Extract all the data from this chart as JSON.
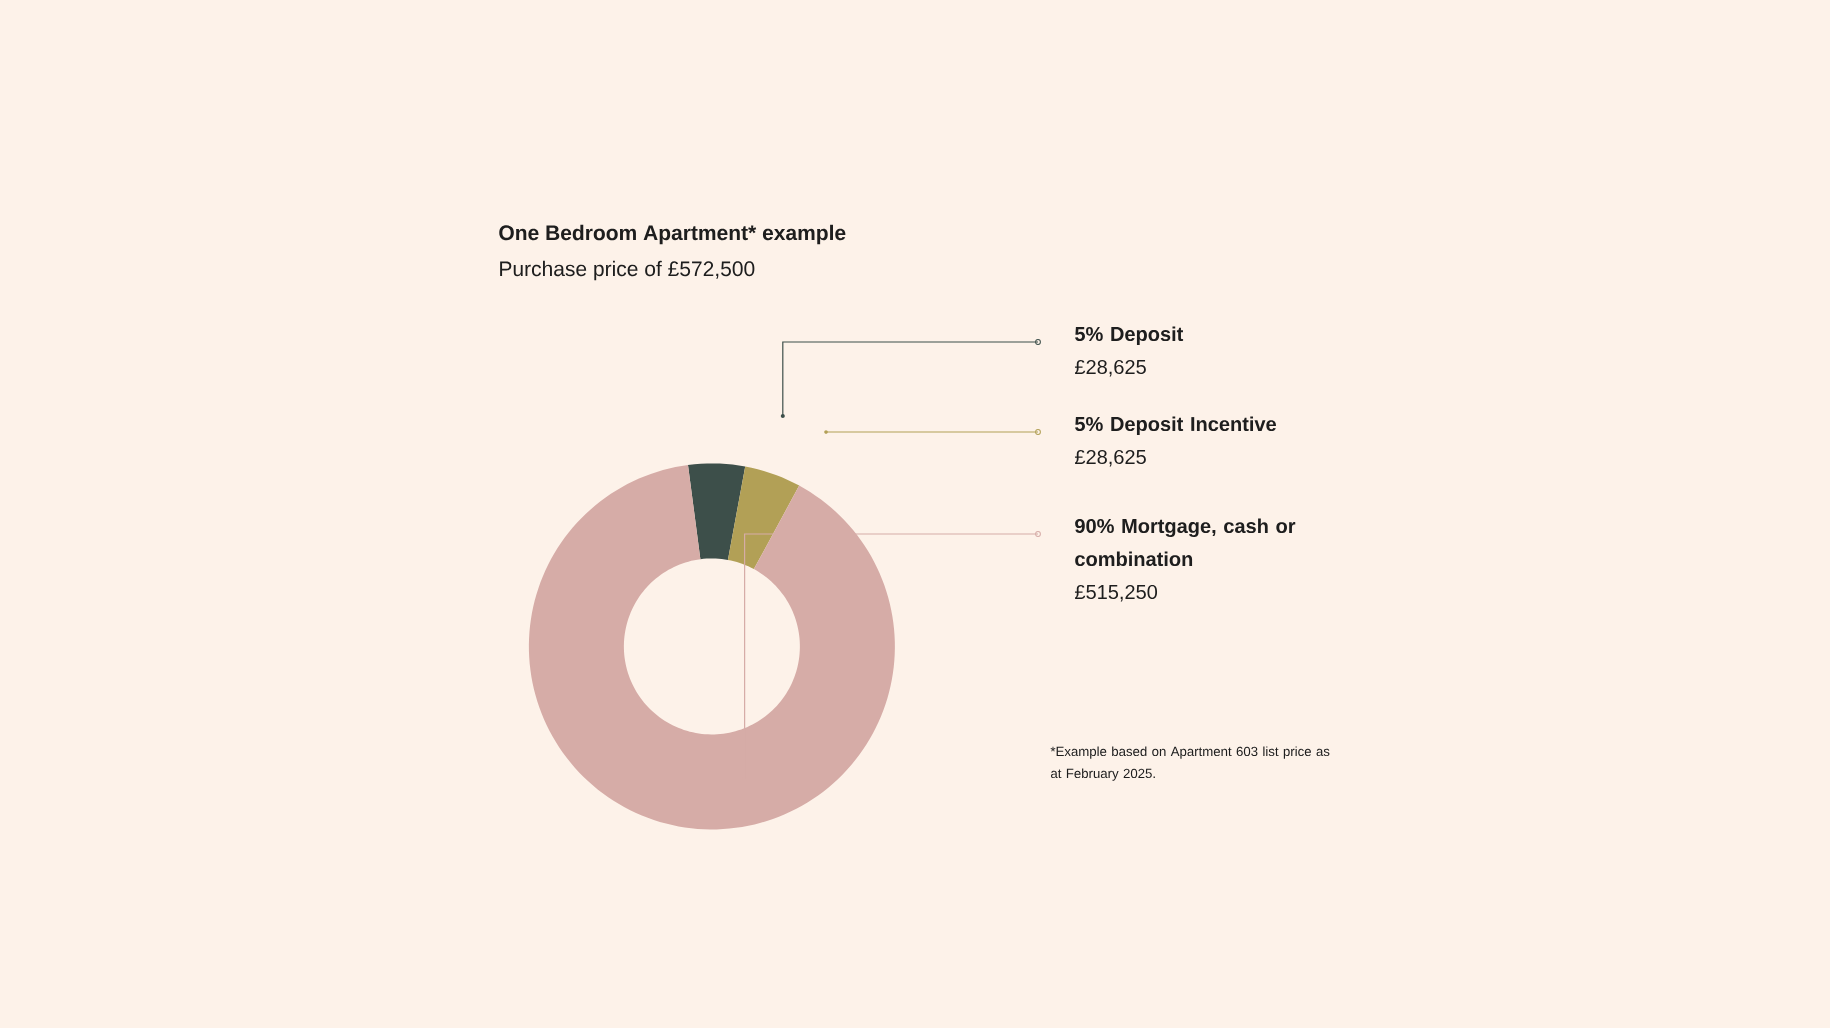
{
  "chart_data": {
    "type": "donut",
    "title": "One Bedroom Apartment* example",
    "subtitle": "Purchase price of £572,500",
    "categories": [
      "5% Deposit",
      "5% Deposit Incentive",
      "90% Mortgage, cash or combination"
    ],
    "values": [
      28625,
      28625,
      515250
    ],
    "value_labels": [
      "£28,625",
      "£28,625",
      "£515,250"
    ],
    "colors": [
      "#3d4f4a",
      "#b2a056",
      "#d6aca7"
    ],
    "legend": "right",
    "annotations": [
      "*Example based on Apartment 603 list price as at February 2025."
    ]
  }
}
